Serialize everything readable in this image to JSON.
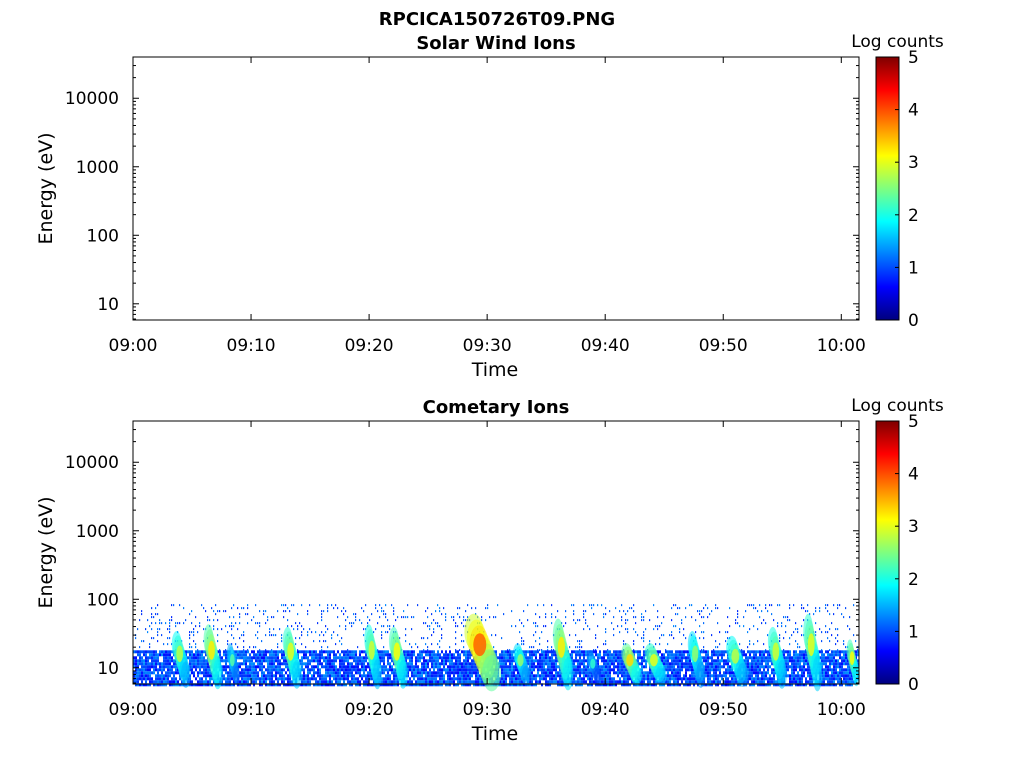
{
  "figure_title": "RPCICA150726T09.PNG",
  "colormap": [
    "#00007f",
    "#0000ff",
    "#007fff",
    "#00ffff",
    "#7fff7f",
    "#ffff00",
    "#ff7f00",
    "#ff0000",
    "#7f0000"
  ],
  "chart_data": [
    {
      "type": "heatmap",
      "title": "Solar Wind Ions",
      "xlabel": "Time",
      "ylabel": "Energy (eV)",
      "x_ticks": [
        "09:00",
        "09:10",
        "09:20",
        "09:30",
        "09:40",
        "09:50",
        "10:00"
      ],
      "x_tick_minutes": [
        0,
        10,
        20,
        30,
        40,
        50,
        60
      ],
      "xlim_minutes": [
        0,
        61.5
      ],
      "y_scale": "log",
      "y_ticks": [
        "10",
        "100",
        "1000",
        "10000"
      ],
      "y_tick_values": [
        10,
        100,
        1000,
        10000
      ],
      "ylim": [
        5.8,
        40000
      ],
      "colorbar_label": "Log counts",
      "colorbar_ticks": [
        "0",
        "1",
        "2",
        "3",
        "4",
        "5"
      ],
      "clim": [
        0,
        5
      ],
      "data_present": false,
      "bursts": []
    },
    {
      "type": "heatmap",
      "title": "Cometary Ions",
      "xlabel": "Time",
      "ylabel": "Energy (eV)",
      "x_ticks": [
        "09:00",
        "09:10",
        "09:20",
        "09:30",
        "09:40",
        "09:50",
        "10:00"
      ],
      "x_tick_minutes": [
        0,
        10,
        20,
        30,
        40,
        50,
        60
      ],
      "xlim_minutes": [
        0,
        61.5
      ],
      "y_scale": "log",
      "y_ticks": [
        "10",
        "100",
        "1000",
        "10000"
      ],
      "y_tick_values": [
        10,
        100,
        1000,
        10000
      ],
      "ylim": [
        5.8,
        40000
      ],
      "colorbar_label": "Log counts",
      "colorbar_ticks": [
        "0",
        "1",
        "2",
        "3",
        "4",
        "5"
      ],
      "clim": [
        0,
        5
      ],
      "data_present": true,
      "background_energy_range_eV": [
        6,
        18
      ],
      "background_log_counts": 1.0,
      "sparse_noise_energy_range_eV": [
        18,
        85
      ],
      "bursts": [
        {
          "start_min": 3.5,
          "end_min": 4.8,
          "peak_energy_eV": 25,
          "peak_log_counts": 2.8
        },
        {
          "start_min": 6.2,
          "end_min": 7.5,
          "peak_energy_eV": 30,
          "peak_log_counts": 3.2
        },
        {
          "start_min": 8.1,
          "end_min": 9.0,
          "peak_energy_eV": 18,
          "peak_log_counts": 2.3
        },
        {
          "start_min": 12.9,
          "end_min": 14.2,
          "peak_energy_eV": 28,
          "peak_log_counts": 3.0
        },
        {
          "start_min": 19.8,
          "end_min": 21.0,
          "peak_energy_eV": 30,
          "peak_log_counts": 2.9
        },
        {
          "start_min": 21.9,
          "end_min": 23.2,
          "peak_energy_eV": 28,
          "peak_log_counts": 3.1
        },
        {
          "start_min": 28.5,
          "end_min": 31.0,
          "peak_energy_eV": 40,
          "peak_log_counts": 3.9
        },
        {
          "start_min": 32.4,
          "end_min": 33.6,
          "peak_energy_eV": 18,
          "peak_log_counts": 2.6
        },
        {
          "start_min": 35.8,
          "end_min": 37.2,
          "peak_energy_eV": 35,
          "peak_log_counts": 3.2
        },
        {
          "start_min": 38.6,
          "end_min": 39.6,
          "peak_energy_eV": 15,
          "peak_log_counts": 2.1
        },
        {
          "start_min": 41.6,
          "end_min": 43.0,
          "peak_energy_eV": 18,
          "peak_log_counts": 3.3
        },
        {
          "start_min": 43.6,
          "end_min": 45.1,
          "peak_energy_eV": 18,
          "peak_log_counts": 3.0
        },
        {
          "start_min": 47.2,
          "end_min": 48.4,
          "peak_energy_eV": 25,
          "peak_log_counts": 2.6
        },
        {
          "start_min": 50.5,
          "end_min": 52.0,
          "peak_energy_eV": 22,
          "peak_log_counts": 2.8
        },
        {
          "start_min": 54.0,
          "end_min": 55.3,
          "peak_energy_eV": 28,
          "peak_log_counts": 2.9
        },
        {
          "start_min": 57.0,
          "end_min": 58.3,
          "peak_energy_eV": 40,
          "peak_log_counts": 3.0
        },
        {
          "start_min": 60.6,
          "end_min": 61.5,
          "peak_energy_eV": 20,
          "peak_log_counts": 3.1
        }
      ]
    }
  ]
}
